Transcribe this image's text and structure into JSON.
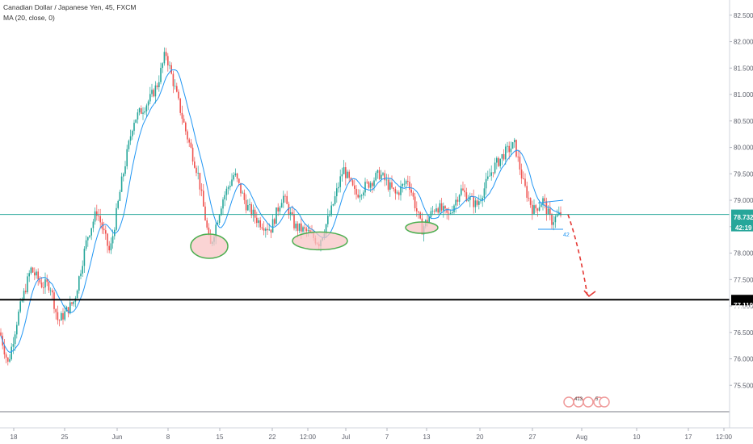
{
  "header": {
    "title": "Canadian Dollar / Japanese Yen, 45, FXCM",
    "indicator": "MA (20, close, 0)"
  },
  "chart_data": {
    "type": "candlestick",
    "title": "Canadian Dollar / Japanese Yen, 45, FXCM",
    "price_axis_ticks": [
      "82.500",
      "82.000",
      "81.500",
      "81.000",
      "80.500",
      "80.000",
      "79.500",
      "79.000",
      "78.500",
      "78.000",
      "77.500",
      "77.000",
      "76.500",
      "76.000",
      "75.500"
    ],
    "time_axis_ticks": [
      "18",
      "25",
      "Jun",
      "8",
      "15",
      "22",
      "12:00",
      "Jul",
      "7",
      "13",
      "20",
      "27",
      "Aug",
      "10",
      "17",
      "12:00"
    ],
    "ylim": [
      75.0,
      82.65
    ],
    "current_price": {
      "value": "78.732",
      "countdown": "42:19",
      "color": "#26a69a"
    },
    "support_level": {
      "value": "77.119",
      "color": "#000000"
    },
    "price_path": [
      {
        "x": 0,
        "y": 76.5
      },
      {
        "x": 10,
        "y": 75.9
      },
      {
        "x": 22,
        "y": 76.8
      },
      {
        "x": 38,
        "y": 77.7
      },
      {
        "x": 52,
        "y": 77.4
      },
      {
        "x": 62,
        "y": 77.4
      },
      {
        "x": 72,
        "y": 76.7
      },
      {
        "x": 92,
        "y": 77.1
      },
      {
        "x": 108,
        "y": 78.3
      },
      {
        "x": 120,
        "y": 78.8
      },
      {
        "x": 136,
        "y": 78.0
      },
      {
        "x": 150,
        "y": 79.3
      },
      {
        "x": 165,
        "y": 80.5
      },
      {
        "x": 185,
        "y": 80.9
      },
      {
        "x": 195,
        "y": 81.2
      },
      {
        "x": 205,
        "y": 81.8
      },
      {
        "x": 215,
        "y": 81.2
      },
      {
        "x": 230,
        "y": 80.3
      },
      {
        "x": 245,
        "y": 79.5
      },
      {
        "x": 260,
        "y": 78.1
      },
      {
        "x": 275,
        "y": 79.0
      },
      {
        "x": 290,
        "y": 79.5
      },
      {
        "x": 305,
        "y": 78.9
      },
      {
        "x": 320,
        "y": 78.6
      },
      {
        "x": 335,
        "y": 78.45
      },
      {
        "x": 350,
        "y": 79.1
      },
      {
        "x": 365,
        "y": 78.5
      },
      {
        "x": 380,
        "y": 78.4
      },
      {
        "x": 395,
        "y": 78.2
      },
      {
        "x": 410,
        "y": 78.8
      },
      {
        "x": 425,
        "y": 79.6
      },
      {
        "x": 440,
        "y": 79.1
      },
      {
        "x": 455,
        "y": 79.3
      },
      {
        "x": 470,
        "y": 79.5
      },
      {
        "x": 490,
        "y": 79.1
      },
      {
        "x": 505,
        "y": 79.4
      },
      {
        "x": 522,
        "y": 78.45
      },
      {
        "x": 540,
        "y": 78.9
      },
      {
        "x": 555,
        "y": 78.7
      },
      {
        "x": 570,
        "y": 79.2
      },
      {
        "x": 590,
        "y": 78.9
      },
      {
        "x": 610,
        "y": 79.6
      },
      {
        "x": 625,
        "y": 79.9
      },
      {
        "x": 637,
        "y": 80.05
      },
      {
        "x": 648,
        "y": 79.3
      },
      {
        "x": 660,
        "y": 78.8
      },
      {
        "x": 672,
        "y": 79.0
      },
      {
        "x": 682,
        "y": 78.6
      },
      {
        "x": 695,
        "y": 78.75
      }
    ],
    "highlighted_lows": [
      {
        "x": 259,
        "y": 78.1,
        "color": "#f8c6c6"
      },
      {
        "x": 396,
        "y": 78.2,
        "color": "#f8c6c6"
      },
      {
        "x": 522,
        "y": 78.45,
        "color": "#f8c6c6"
      }
    ],
    "projection": {
      "from": {
        "x": 703,
        "y": 78.73
      },
      "to": {
        "x": 731,
        "y": 77.2
      },
      "color": "#e53935"
    },
    "colors": {
      "up": "#26a69a",
      "down": "#ef5350",
      "ma": "#2196f3",
      "ellipse_stroke": "#4caf50"
    }
  },
  "badges": {
    "label_413": "413",
    "label_5": "5",
    "label_42": "42"
  }
}
